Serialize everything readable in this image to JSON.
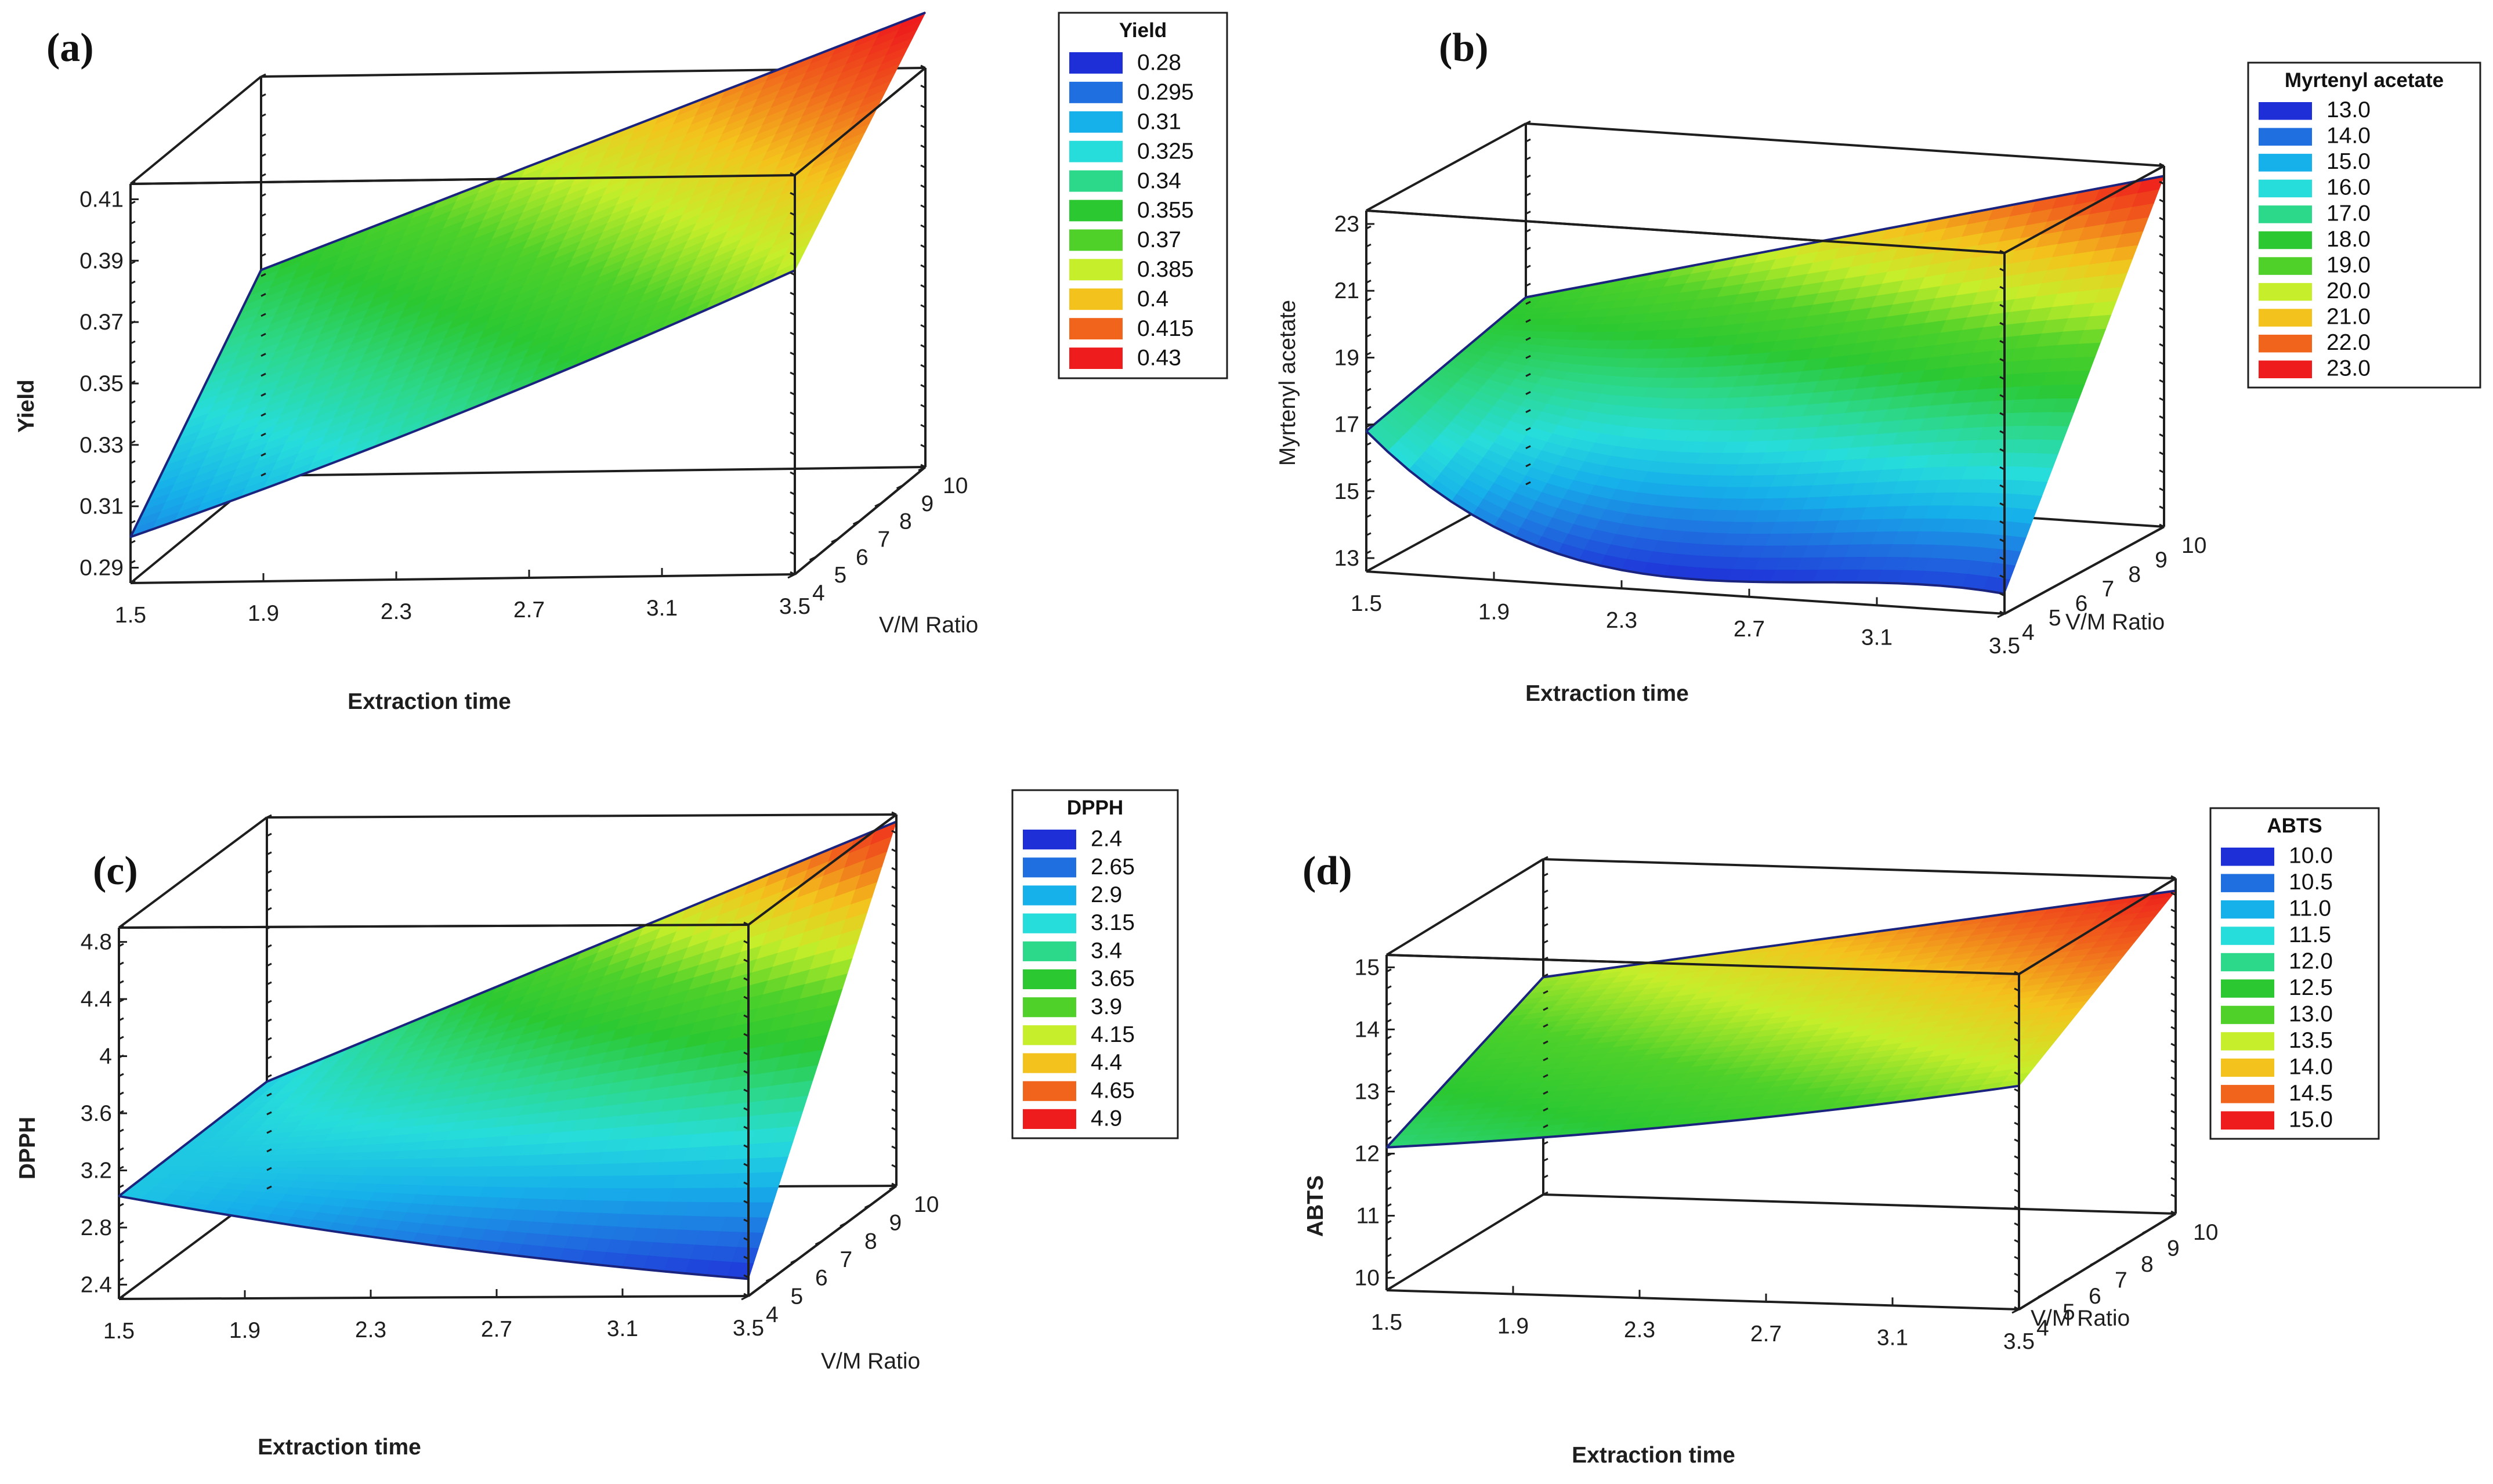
{
  "chart_data": [
    {
      "panel": "(a)",
      "type": "surface",
      "xlabel": "Extraction time",
      "ylabel": "V/M Ratio",
      "zlabel": "Yield",
      "x_ticks": [
        "1.5",
        "1.9",
        "2.3",
        "2.7",
        "3.1",
        "3.5"
      ],
      "y_ticks": [
        "4",
        "5",
        "6",
        "7",
        "8",
        "9",
        "10"
      ],
      "z_ticks": [
        "0.29",
        "0.31",
        "0.33",
        "0.35",
        "0.37",
        "0.39",
        "0.41"
      ],
      "xlim": [
        1.5,
        3.5
      ],
      "ylim": [
        4,
        10
      ],
      "zlim": [
        0.285,
        0.415
      ],
      "legend": {
        "title": "Yield",
        "levels": [
          "0.28",
          "0.295",
          "0.31",
          "0.325",
          "0.34",
          "0.355",
          "0.37",
          "0.385",
          "0.4",
          "0.415",
          "0.43"
        ],
        "colors": [
          "#1f2fd8",
          "#1f6fe0",
          "#16b0ea",
          "#27dddb",
          "#2cd88a",
          "#2bc832",
          "#4fd12a",
          "#c6ee2a",
          "#f4c21c",
          "#f0641c",
          "#ee1c1c"
        ]
      },
      "surface": {
        "z_front_left": 0.3,
        "z_front_right": 0.384,
        "z_back_left": 0.352,
        "z_back_right": 0.433,
        "color_start": 0.31,
        "color_end": 0.405
      }
    },
    {
      "panel": "(b)",
      "type": "surface",
      "xlabel": "Extraction time",
      "ylabel": "V/M Ratio",
      "zlabel": "Myrtenyl acetate",
      "x_ticks": [
        "1.5",
        "1.9",
        "2.3",
        "2.7",
        "3.1",
        "3.5"
      ],
      "y_ticks": [
        "4",
        "5",
        "6",
        "7",
        "8",
        "9",
        "10"
      ],
      "z_ticks": [
        "13",
        "15",
        "17",
        "19",
        "21",
        "23"
      ],
      "xlim": [
        1.5,
        3.5
      ],
      "ylim": [
        4,
        10
      ],
      "zlim": [
        12.6,
        23.4
      ],
      "legend": {
        "title": "Myrtenyl acetate",
        "levels": [
          "13.0",
          "14.0",
          "15.0",
          "16.0",
          "17.0",
          "18.0",
          "19.0",
          "20.0",
          "21.0",
          "22.0",
          "23.0"
        ],
        "colors": [
          "#1f2fd8",
          "#1f6fe0",
          "#16b0ea",
          "#27dddb",
          "#2cd88a",
          "#2bc832",
          "#4fd12a",
          "#c6ee2a",
          "#f4c21c",
          "#f0641c",
          "#ee1c1c"
        ]
      },
      "surface": {
        "z_front_left": 16.8,
        "z_front_right": 13.2,
        "z_back_left": 18.2,
        "z_back_right": 23.1,
        "z_front_mid_min": 12.8,
        "color_start": 13.2,
        "color_end": 21.0
      }
    },
    {
      "panel": "(c)",
      "type": "surface",
      "xlabel": "Extraction time",
      "ylabel": "V/M Ratio",
      "zlabel": "DPPH",
      "x_ticks": [
        "1.5",
        "1.9",
        "2.3",
        "2.7",
        "3.1",
        "3.5"
      ],
      "y_ticks": [
        "4",
        "5",
        "6",
        "7",
        "8",
        "9",
        "10"
      ],
      "z_ticks": [
        "2.4",
        "2.8",
        "3.2",
        "3.6",
        "4",
        "4.4",
        "4.8"
      ],
      "xlim": [
        1.5,
        3.5
      ],
      "ylim": [
        4,
        10
      ],
      "zlim": [
        2.3,
        4.9
      ],
      "legend": {
        "title": "DPPH",
        "levels": [
          "2.4",
          "2.65",
          "2.9",
          "3.15",
          "3.4",
          "3.65",
          "3.9",
          "4.15",
          "4.4",
          "4.65",
          "4.9"
        ],
        "colors": [
          "#1f2fd8",
          "#1f6fe0",
          "#16b0ea",
          "#27dddb",
          "#2cd88a",
          "#2bc832",
          "#4fd12a",
          "#c6ee2a",
          "#f4c21c",
          "#f0641c",
          "#ee1c1c"
        ]
      },
      "surface": {
        "z_front_left": 3.02,
        "z_front_right": 2.42,
        "z_back_left": 3.05,
        "z_back_right": 4.85,
        "color_start": 2.8,
        "color_end": 4.5
      }
    },
    {
      "panel": "(d)",
      "type": "surface",
      "xlabel": "Extraction time",
      "ylabel": "V/M Ratio",
      "zlabel": "ABTS",
      "x_ticks": [
        "1.5",
        "1.9",
        "2.3",
        "2.7",
        "3.1",
        "3.5"
      ],
      "y_ticks": [
        "4",
        "5",
        "6",
        "7",
        "8",
        "9",
        "10"
      ],
      "z_ticks": [
        "10",
        "11",
        "12",
        "13",
        "14",
        "15"
      ],
      "xlim": [
        1.5,
        3.5
      ],
      "ylim": [
        4,
        10
      ],
      "zlim": [
        9.8,
        15.2
      ],
      "legend": {
        "title": "ABTS",
        "levels": [
          "10.0",
          "10.5",
          "11.0",
          "11.5",
          "12.0",
          "12.5",
          "13.0",
          "13.5",
          "14.0",
          "14.5",
          "15.0"
        ],
        "colors": [
          "#1f2fd8",
          "#1f6fe0",
          "#16b0ea",
          "#27dddb",
          "#2cd88a",
          "#2bc832",
          "#4fd12a",
          "#c6ee2a",
          "#f4c21c",
          "#f0641c",
          "#ee1c1c"
        ]
      },
      "surface": {
        "z_front_left": 12.1,
        "z_front_right": 13.4,
        "z_back_left": 13.3,
        "z_back_right": 15.0,
        "color_start": 11.3,
        "color_end": 14.1
      }
    }
  ]
}
